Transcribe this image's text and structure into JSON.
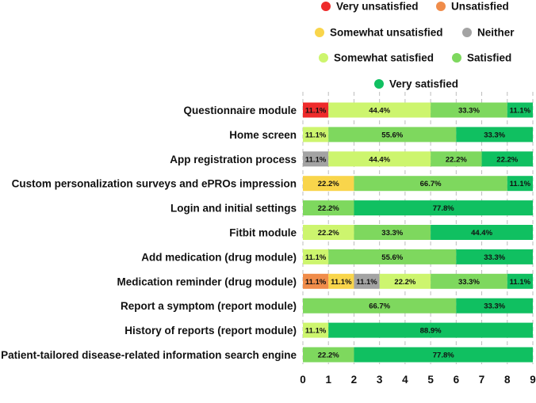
{
  "chart_data": {
    "type": "bar",
    "orientation": "horizontal",
    "stacked": true,
    "title": "",
    "xlabel": "",
    "ylabel": "",
    "xlim": [
      0,
      9
    ],
    "x_ticks": [
      "0",
      "1",
      "2",
      "3",
      "4",
      "5",
      "6",
      "7",
      "8",
      "9"
    ],
    "grid": "vertical dashed",
    "legend_position": "top",
    "categories": [
      "Questionnaire module",
      "Home screen",
      "App registration process",
      "Custom personalization surveys and ePROs impression",
      "Login and initial settings",
      "Fitbit module",
      "Add medication (drug module)",
      "Medication reminder (drug module)",
      "Report a symptom (report module)",
      "History of reports (report module)",
      "Patient-tailored disease-related information search engine"
    ],
    "series": [
      {
        "name": "Very unsatisfied",
        "color": "#ee2b2b",
        "values": [
          1,
          0,
          0,
          0,
          0,
          0,
          0,
          0,
          0,
          0,
          0
        ],
        "labels": [
          "11.1%",
          "",
          "",
          "",
          "",
          "",
          "",
          "",
          "",
          "",
          ""
        ]
      },
      {
        "name": "Unsatisfied",
        "color": "#f08c4a",
        "values": [
          0,
          0,
          0,
          0,
          0,
          0,
          0,
          1,
          0,
          0,
          0
        ],
        "labels": [
          "",
          "",
          "",
          "",
          "",
          "",
          "",
          "11.1%",
          "",
          "",
          ""
        ]
      },
      {
        "name": "Somewhat unsatisfied",
        "color": "#f9d54b",
        "values": [
          0,
          0,
          0,
          2,
          0,
          0,
          0,
          1,
          0,
          0,
          0
        ],
        "labels": [
          "",
          "",
          "",
          "22.2%",
          "",
          "",
          "",
          "11.1%",
          "",
          "",
          ""
        ]
      },
      {
        "name": "Neither",
        "color": "#a3a3a3",
        "values": [
          0,
          0,
          1,
          0,
          0,
          0,
          0,
          1,
          0,
          0,
          0
        ],
        "labels": [
          "",
          "",
          "11.1%",
          "",
          "",
          "",
          "",
          "11.1%",
          "",
          "",
          ""
        ]
      },
      {
        "name": "Somewhat satisfied",
        "color": "#cdf56e",
        "values": [
          4,
          1,
          4,
          0,
          0,
          2,
          1,
          2,
          0,
          1,
          0
        ],
        "labels": [
          "44.4%",
          "11.1%",
          "44.4%",
          "",
          "",
          "22.2%",
          "11.1%",
          "22.2%",
          "",
          "11.1%",
          ""
        ]
      },
      {
        "name": "Satisfied",
        "color": "#7ed85e",
        "values": [
          3,
          5,
          2,
          6,
          2,
          3,
          5,
          3,
          6,
          0,
          2
        ],
        "labels": [
          "33.3%",
          "55.6%",
          "22.2%",
          "66.7%",
          "22.2%",
          "33.3%",
          "55.6%",
          "33.3%",
          "66.7%",
          "",
          "22.2%"
        ]
      },
      {
        "name": "Very satisfied",
        "color": "#10c061",
        "values": [
          1,
          3,
          2,
          1,
          7,
          4,
          3,
          1,
          3,
          8,
          7
        ],
        "labels": [
          "11.1%",
          "33.3%",
          "22.2%",
          "11.1%",
          "77.8%",
          "44.4%",
          "33.3%",
          "11.1%",
          "33.3%",
          "88.9%",
          "77.8%"
        ]
      }
    ]
  }
}
